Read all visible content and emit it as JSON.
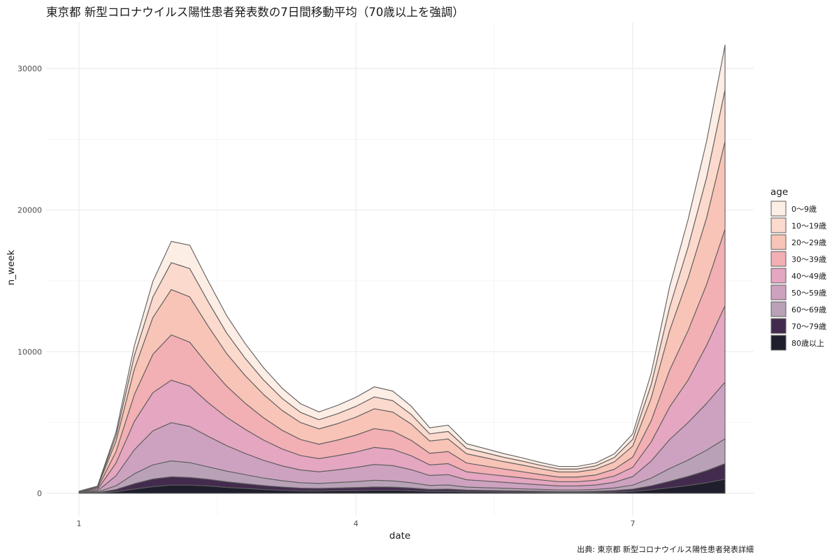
{
  "title": "東京都 新型コロナウイルス陽性患者発表数の7日間移動平均（70歳以上を強調）",
  "caption": "出典: 東京都 新型コロナウイルス陽性患者発表詳細",
  "chart_data": {
    "type": "area",
    "stacked": true,
    "title": "東京都 新型コロナウイルス陽性患者発表数の7日間移動平均（70歳以上を強調）",
    "xlabel": "date",
    "ylabel": "n_week",
    "xlim": [
      1,
      8.3
    ],
    "ylim": [
      0,
      32000
    ],
    "x_ticks": [
      1,
      4,
      7
    ],
    "y_ticks": [
      0,
      10000,
      20000,
      30000
    ],
    "grid": true,
    "legend": {
      "title": "age",
      "placement": "right"
    },
    "x": [
      1,
      1.2,
      1.4,
      1.6,
      1.8,
      2.0,
      2.2,
      2.4,
      2.6,
      2.8,
      3.0,
      3.2,
      3.4,
      3.6,
      3.8,
      4.0,
      4.2,
      4.4,
      4.6,
      4.8,
      5.0,
      5.2,
      5.4,
      5.6,
      5.8,
      6.0,
      6.2,
      6.4,
      6.6,
      6.8,
      7.0,
      7.2,
      7.4,
      7.6,
      7.8,
      8.0
    ],
    "series": [
      {
        "name": "80歳以上",
        "color": "#1e1e2c",
        "values": [
          10,
          30,
          120,
          300,
          470,
          580,
          580,
          520,
          420,
          350,
          270,
          210,
          170,
          160,
          180,
          190,
          210,
          210,
          180,
          130,
          140,
          110,
          100,
          90,
          80,
          70,
          60,
          60,
          70,
          90,
          140,
          250,
          400,
          550,
          750,
          1000
        ]
      },
      {
        "name": "70〜79歳",
        "color": "#432b4e",
        "values": [
          10,
          30,
          150,
          380,
          540,
          590,
          540,
          470,
          400,
          330,
          280,
          240,
          200,
          190,
          200,
          220,
          240,
          230,
          200,
          150,
          160,
          120,
          110,
          100,
          90,
          80,
          70,
          70,
          80,
          110,
          160,
          280,
          450,
          650,
          850,
          1100
        ]
      },
      {
        "name": "60〜69歳",
        "color": "#b9a2b7",
        "values": [
          15,
          40,
          260,
          700,
          1000,
          1120,
          1050,
          880,
          750,
          640,
          530,
          440,
          380,
          350,
          380,
          420,
          470,
          440,
          370,
          280,
          290,
          210,
          190,
          170,
          150,
          130,
          110,
          110,
          130,
          180,
          280,
          550,
          900,
          1150,
          1450,
          1750
        ]
      },
      {
        "name": "50〜59歳",
        "color": "#cda2c0",
        "values": [
          20,
          70,
          700,
          1700,
          2400,
          2700,
          2550,
          2150,
          1800,
          1500,
          1250,
          1050,
          900,
          820,
          900,
          1000,
          1120,
          1080,
          920,
          700,
          730,
          520,
          470,
          420,
          370,
          320,
          280,
          280,
          310,
          400,
          600,
          1200,
          2050,
          2650,
          3300,
          4000
        ]
      },
      {
        "name": "40〜49歳",
        "color": "#e4a6c0",
        "values": [
          30,
          100,
          900,
          2000,
          2700,
          3000,
          2850,
          2380,
          2000,
          1700,
          1430,
          1200,
          1020,
          930,
          1000,
          1080,
          1200,
          1150,
          980,
          750,
          780,
          560,
          500,
          450,
          400,
          350,
          300,
          300,
          340,
          440,
          660,
          1350,
          2300,
          3000,
          4100,
          5400
        ]
      },
      {
        "name": "30〜39歳",
        "color": "#f2afb4",
        "values": [
          25,
          90,
          800,
          1900,
          2700,
          3200,
          3100,
          2650,
          2200,
          1850,
          1570,
          1320,
          1130,
          1020,
          1100,
          1200,
          1330,
          1280,
          1090,
          820,
          850,
          620,
          560,
          490,
          440,
          380,
          330,
          330,
          370,
          480,
          720,
          1500,
          2600,
          3500,
          4300,
          5400
        ]
      },
      {
        "name": "20〜29歳",
        "color": "#f8c4b7",
        "values": [
          20,
          80,
          740,
          1800,
          2600,
          3200,
          3200,
          2750,
          2300,
          1950,
          1650,
          1400,
          1200,
          1080,
          1160,
          1270,
          1400,
          1350,
          1150,
          860,
          890,
          650,
          590,
          520,
          470,
          410,
          360,
          360,
          400,
          520,
          780,
          1600,
          2800,
          3700,
          4700,
          6200
        ]
      },
      {
        "name": "10〜19歳",
        "color": "#fbd9cc",
        "values": [
          10,
          40,
          370,
          950,
          1450,
          1900,
          2000,
          1730,
          1450,
          1220,
          1020,
          850,
          720,
          650,
          700,
          760,
          840,
          800,
          680,
          510,
          530,
          390,
          350,
          310,
          280,
          240,
          210,
          210,
          240,
          310,
          470,
          950,
          1650,
          2200,
          2850,
          3650
        ]
      },
      {
        "name": "0〜9歳",
        "color": "#fcede5",
        "values": [
          10,
          30,
          260,
          700,
          1100,
          1500,
          1650,
          1450,
          1230,
          1040,
          870,
          720,
          610,
          550,
          590,
          640,
          710,
          680,
          580,
          430,
          440,
          320,
          290,
          260,
          230,
          200,
          180,
          180,
          200,
          260,
          390,
          800,
          1450,
          1950,
          2550,
          3150
        ]
      }
    ]
  }
}
